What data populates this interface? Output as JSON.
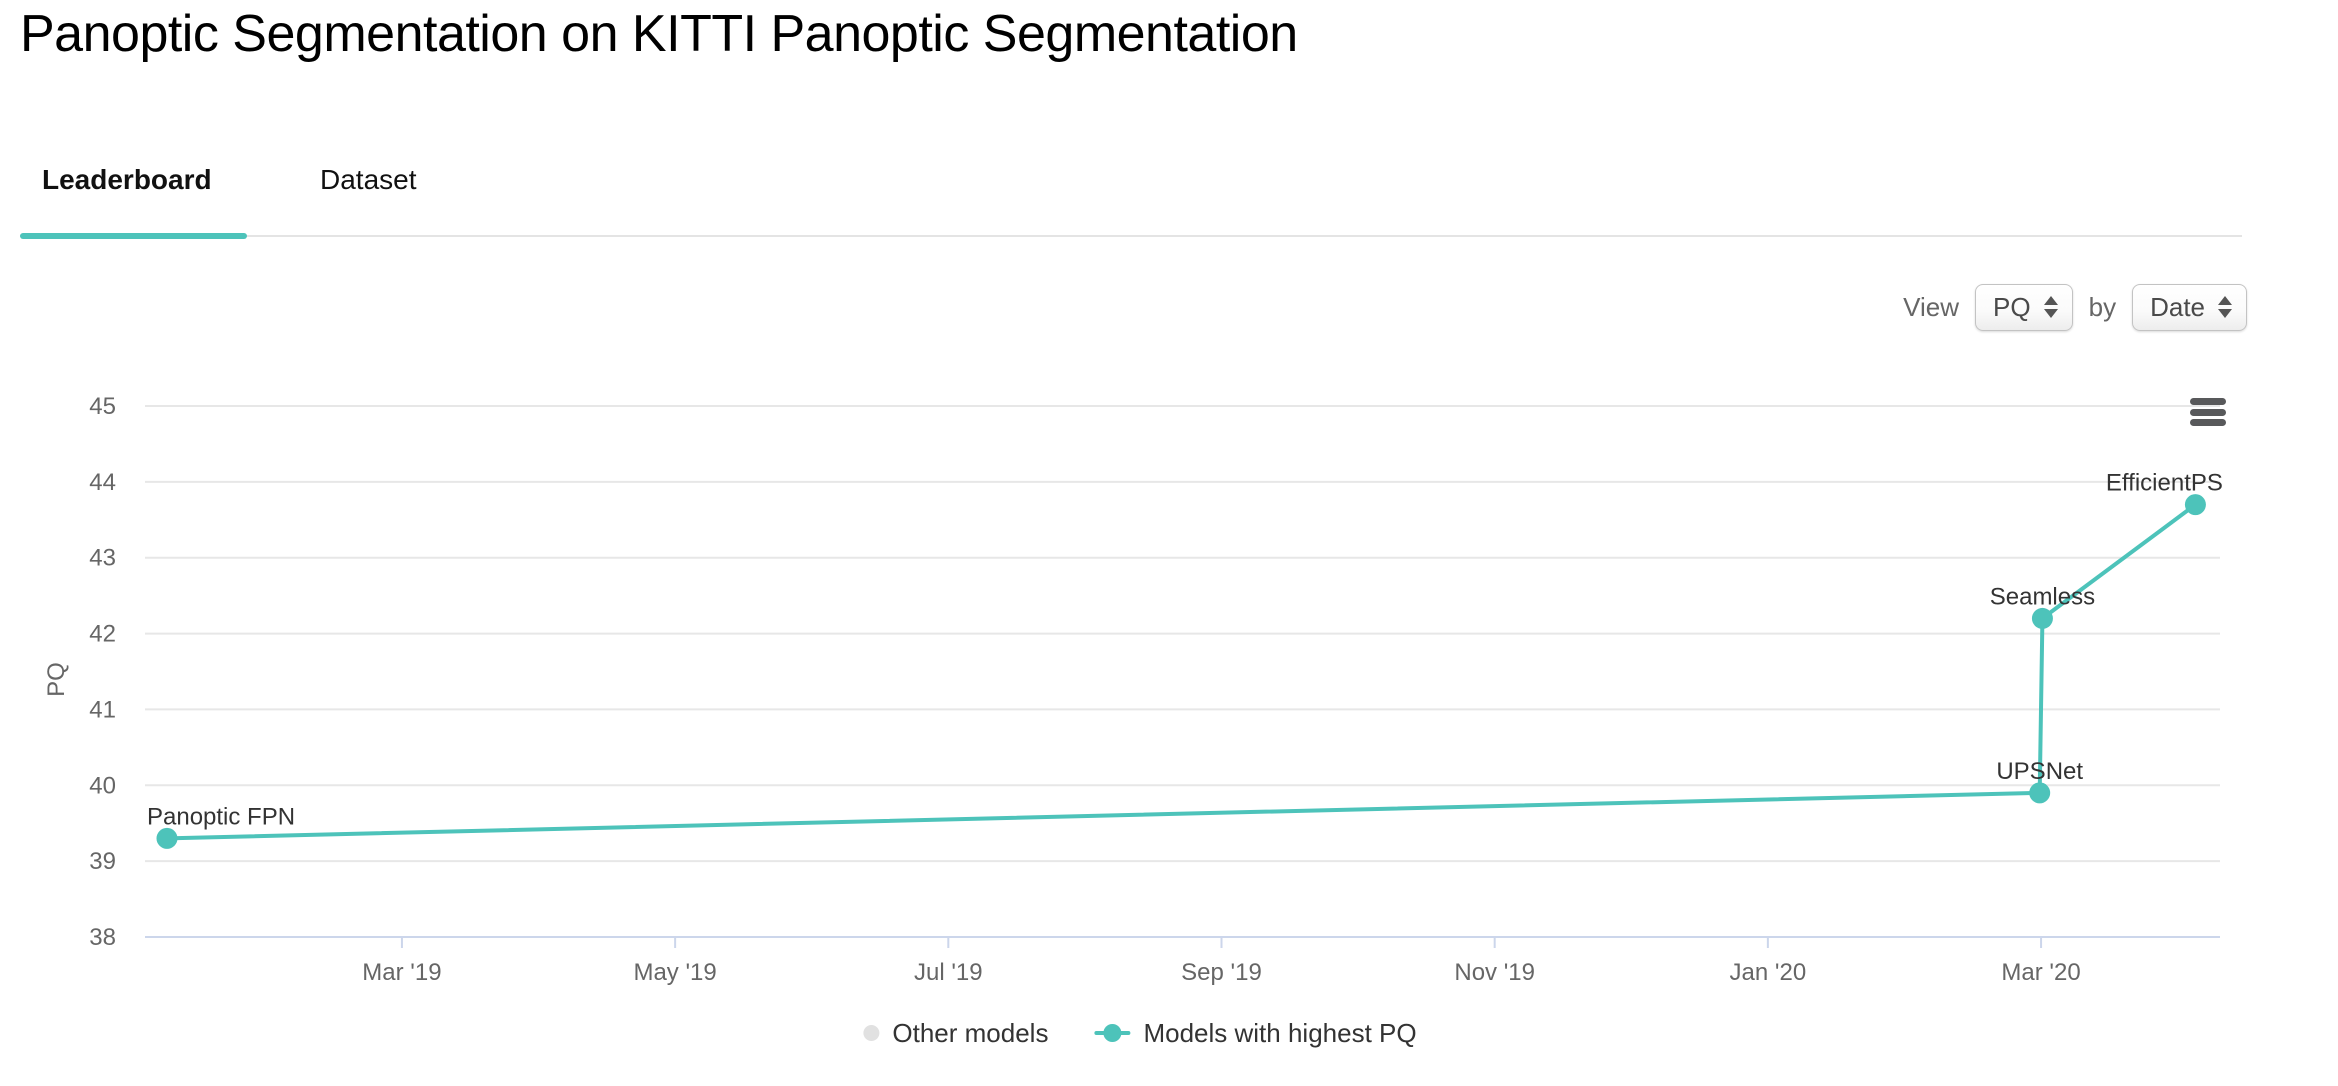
{
  "header": {
    "title": "Panoptic Segmentation on KITTI Panoptic Segmentation"
  },
  "tabs": [
    {
      "label": "Leaderboard",
      "active": true
    },
    {
      "label": "Dataset",
      "active": false
    }
  ],
  "controls": {
    "view_label": "View",
    "metric_value": "PQ",
    "by_label": "by",
    "groupby_value": "Date"
  },
  "icons": {
    "chart_menu": "hamburger-menu",
    "metric_select_arrows": "up-down-arrows",
    "groupby_select_arrows": "up-down-arrows"
  },
  "legend": [
    {
      "label": "Other models"
    },
    {
      "label": "Models with highest PQ"
    }
  ],
  "colors": {
    "accent_teal": "#4dc3ba",
    "legend_gray": "#e1e1e1",
    "grid_line": "#e7e7e7",
    "axis_line": "#ccd6eb",
    "tick_text": "#666666",
    "label_text": "#333333"
  },
  "chart_data": {
    "type": "line",
    "title": "",
    "xlabel": "",
    "ylabel": "PQ",
    "ylim": [
      38,
      45
    ],
    "yticks": [
      38,
      39,
      40,
      41,
      42,
      43,
      44,
      45
    ],
    "grid": true,
    "legend_position": "bottom",
    "x_axis": {
      "unit": "months since Jan 2019 (estimated from tick spacing)",
      "range": [
        0.119,
        15.31
      ],
      "ticks": [
        {
          "m": 2,
          "label": "Mar '19"
        },
        {
          "m": 4,
          "label": "May '19"
        },
        {
          "m": 6,
          "label": "Jul '19"
        },
        {
          "m": 8,
          "label": "Sep '19"
        },
        {
          "m": 10,
          "label": "Nov '19"
        },
        {
          "m": 12,
          "label": "Jan '20"
        },
        {
          "m": 14,
          "label": "Mar '20"
        }
      ]
    },
    "series": [
      {
        "name": "Other models",
        "color": "#e1e1e1",
        "points": []
      },
      {
        "name": "Models with highest PQ",
        "color": "#4dc3ba",
        "points": [
          {
            "label": "Panoptic FPN",
            "date": "Jan '19",
            "m": 0.28,
            "pq": 39.3
          },
          {
            "label": "UPSNet",
            "date": "Mar '20",
            "m": 13.99,
            "pq": 39.9
          },
          {
            "label": "Seamless",
            "date": "Mar '20",
            "m": 14.01,
            "pq": 42.2
          },
          {
            "label": "EfficientPS",
            "date": "Apr '20",
            "m": 15.13,
            "pq": 43.7
          }
        ]
      }
    ]
  }
}
